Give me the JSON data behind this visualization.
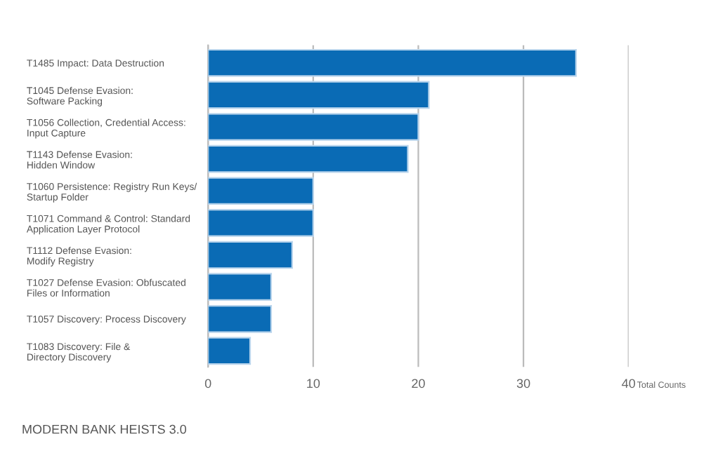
{
  "chart_data": {
    "type": "bar",
    "orientation": "horizontal",
    "categories": [
      "T1485 Impact: Data Destruction",
      "T1045 Defense Evasion:\nSoftware Packing",
      "T1056 Collection, Credential Access:\nInput Capture",
      "T1143 Defense Evasion:\nHidden Window",
      "T1060 Persistence: Registry Run Keys/\nStartup Folder",
      "T1071 Command & Control: Standard\nApplication Layer Protocol",
      "T1112 Defense Evasion:\nModify Registry",
      "T1027 Defense Evasion: Obfuscated\nFiles or Information",
      "T1057 Discovery: Process Discovery",
      "T1083 Discovery: File &\nDirectory Discovery"
    ],
    "values": [
      35,
      21,
      20,
      19,
      10,
      10,
      8,
      6,
      6,
      4
    ],
    "color": "#0a6bb5",
    "xlim": [
      0,
      40
    ],
    "xticks": [
      0,
      10,
      20,
      30,
      40
    ],
    "xlabel": "Total Counts",
    "grid": "x",
    "annotations": [
      "MODERN BANK HEISTS 3.0"
    ]
  }
}
